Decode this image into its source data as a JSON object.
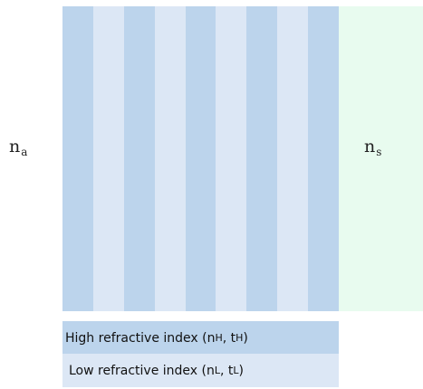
{
  "ambient": {
    "symbol": "n",
    "subscript": "a"
  },
  "substrate": {
    "symbol": "n",
    "subscript": "s",
    "color": "#e8fbef"
  },
  "stack": {
    "layers": [
      "H",
      "L",
      "H",
      "L",
      "H",
      "L",
      "H",
      "L",
      "H"
    ]
  },
  "colors": {
    "high": "#bcd4ec",
    "low": "#dce7f5"
  },
  "legend": {
    "high": {
      "text": "High refractive index (n",
      "sub1": "H",
      "mid": ", t",
      "sub2": "H",
      "end": ")"
    },
    "low": {
      "text": "Low refractive index (n",
      "sub1": "L",
      "mid": ", t",
      "sub2": "L",
      "end": ")"
    }
  }
}
